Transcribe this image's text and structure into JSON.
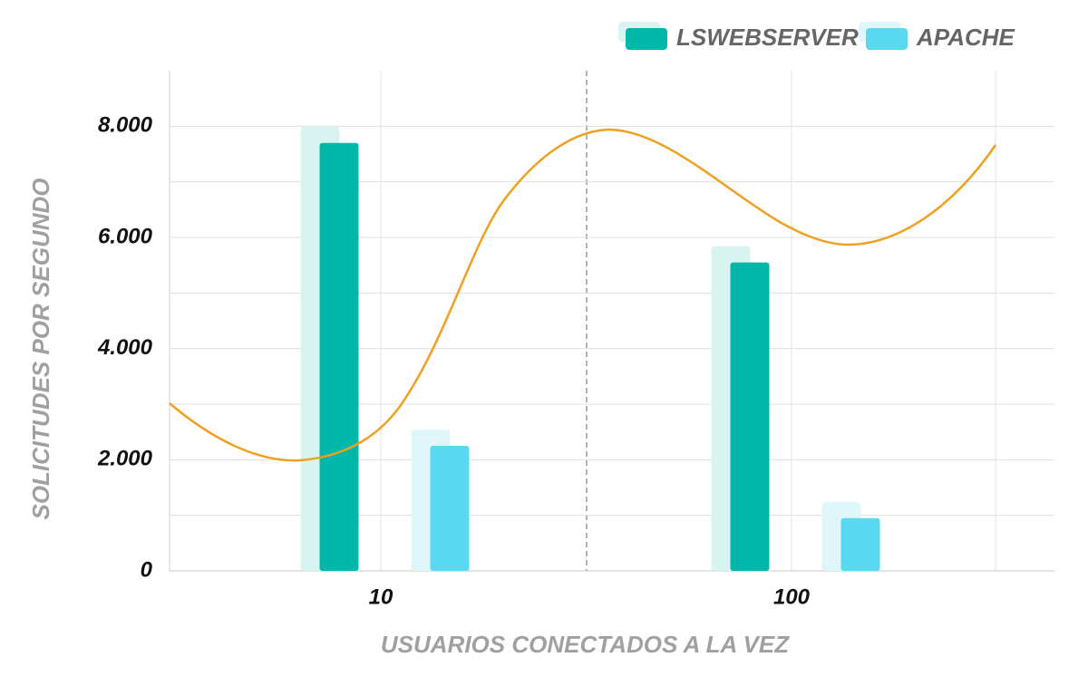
{
  "chart_data": {
    "type": "bar",
    "categories": [
      "10",
      "100"
    ],
    "series": [
      {
        "name": "LSWEBSERVER",
        "color": "#00b8a9",
        "values": [
          7700,
          5550
        ]
      },
      {
        "name": "APACHE",
        "color": "#5ad8f0",
        "values": [
          2250,
          950
        ]
      }
    ],
    "x_label": "USUARIOS CONECTADOS A LA VEZ",
    "y_label": "SOLICITUDES POR SEGUNDO",
    "ylim": [
      0,
      9000
    ],
    "yticks": [
      0,
      {
        "value": 2000,
        "label": "2.000"
      },
      {
        "value": 4000,
        "label": "4.000"
      },
      {
        "value": 6000,
        "label": "6.000"
      },
      {
        "value": 8000,
        "label": "8.000"
      }
    ],
    "minor_yticks": [
      1000,
      3000,
      5000,
      7000
    ],
    "grid": true,
    "legend": "top-right"
  }
}
